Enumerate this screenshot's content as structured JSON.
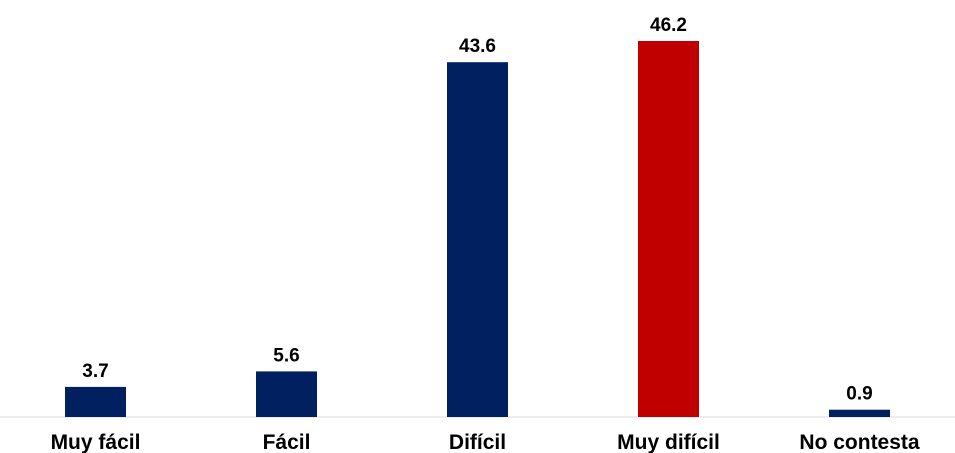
{
  "chart_data": {
    "type": "bar",
    "categories": [
      "Muy fácil",
      "Fácil",
      "Difícil",
      "Muy difícil",
      "No contesta"
    ],
    "values": [
      3.7,
      5.6,
      43.6,
      46.2,
      0.9
    ],
    "value_labels": [
      "3.7",
      "5.6",
      "43.6",
      "46.2",
      "0.9"
    ],
    "colors": [
      "#002060",
      "#002060",
      "#002060",
      "#C00000",
      "#002060"
    ],
    "title": "",
    "xlabel": "",
    "ylabel": "",
    "ylim": [
      0,
      46.2
    ],
    "grid": false,
    "legend": "none",
    "axis_color": "#D9D9D9"
  }
}
